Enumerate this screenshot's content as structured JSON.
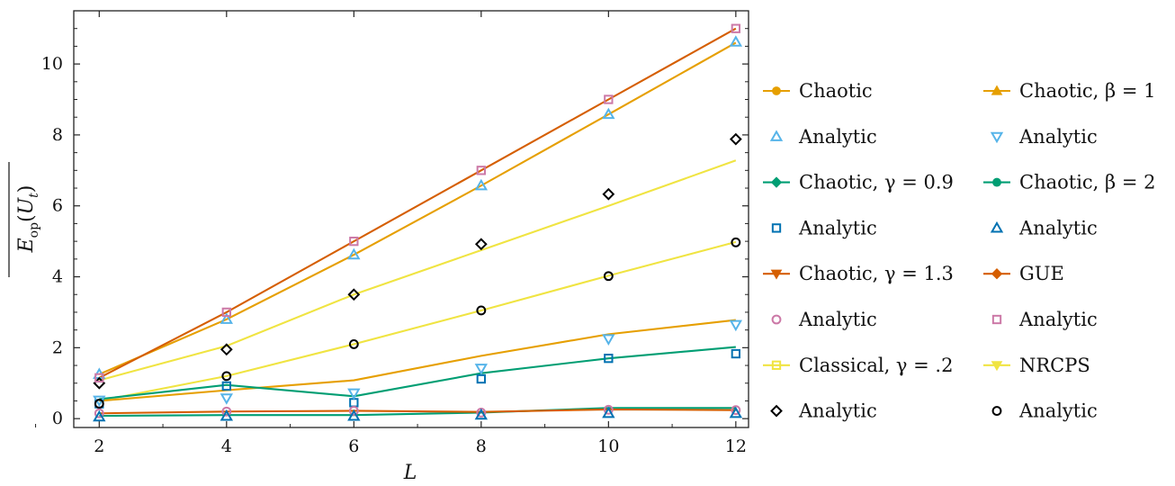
{
  "chart_data": {
    "type": "line",
    "xlabel": "L",
    "ylabel": "E_op(U_t)",
    "xlim": [
      1.6,
      12.2
    ],
    "ylim": [
      -0.25,
      11.5
    ],
    "x_ticks": [
      2,
      4,
      6,
      8,
      10,
      12
    ],
    "y_ticks": [
      0,
      2,
      4,
      6,
      8,
      10
    ],
    "x_tick_labels": [
      "2",
      "4",
      "6",
      "8",
      "10",
      "12"
    ],
    "y_tick_labels": [
      "0",
      "2",
      "4",
      "6",
      "8",
      "10"
    ],
    "grid": false,
    "legend_position": "right, two columns",
    "x": [
      2,
      4,
      6,
      8,
      10,
      12
    ],
    "series": [
      {
        "name": "Chaotic",
        "kind": "line",
        "marker": "circle-filled",
        "color": "#E69F00",
        "values": [
          1.25,
          2.8,
          4.62,
          6.57,
          8.58,
          10.6
        ]
      },
      {
        "name": "Analytic",
        "kind": "marker",
        "marker": "triangle-up-open",
        "color": "#56B4E9",
        "values": [
          1.25,
          2.8,
          4.62,
          6.57,
          8.58,
          10.62
        ]
      },
      {
        "name": "Chaotic, γ = 0.9",
        "kind": "line",
        "marker": "diamond-filled",
        "color": "#009E73",
        "values": [
          0.55,
          0.95,
          0.63,
          1.28,
          1.7,
          2.02
        ]
      },
      {
        "name": "Analytic",
        "kind": "marker",
        "marker": "square-open",
        "color": "#0072B2",
        "values": [
          0.42,
          0.92,
          0.45,
          1.12,
          1.7,
          1.83
        ]
      },
      {
        "name": "Chaotic, γ = 1.3",
        "kind": "line",
        "marker": "triangle-down-filled",
        "color": "#D55E00",
        "values": [
          0.15,
          0.2,
          0.22,
          0.19,
          0.26,
          0.24
        ]
      },
      {
        "name": "Analytic",
        "kind": "marker",
        "marker": "circle-open",
        "color": "#CC79A7",
        "values": [
          0.15,
          0.2,
          0.22,
          0.17,
          0.25,
          0.24
        ]
      },
      {
        "name": "Classical, γ = .2",
        "kind": "line",
        "marker": "square-open",
        "color": "#F0E442",
        "values": [
          0.5,
          1.2,
          2.1,
          3.05,
          4.03,
          4.98
        ]
      },
      {
        "name": "Analytic",
        "kind": "marker",
        "marker": "diamond-open",
        "color": "#000000",
        "values": [
          1.0,
          1.95,
          3.5,
          4.92,
          6.33,
          7.88
        ]
      },
      {
        "name": "Chaotic, β = 1",
        "kind": "line",
        "marker": "triangle-up-filled",
        "color": "#E69F00",
        "values": [
          0.5,
          0.8,
          1.08,
          1.77,
          2.38,
          2.78
        ]
      },
      {
        "name": "Analytic",
        "kind": "marker",
        "marker": "triangle-down-open",
        "color": "#56B4E9",
        "values": [
          0.52,
          0.58,
          0.72,
          1.42,
          2.25,
          2.65
        ]
      },
      {
        "name": "Chaotic, β = 2",
        "kind": "line",
        "marker": "circle-filled",
        "color": "#009E73",
        "values": [
          0.08,
          0.1,
          0.1,
          0.17,
          0.3,
          0.3
        ]
      },
      {
        "name": "Analytic",
        "kind": "marker",
        "marker": "triangle-up-open",
        "color": "#0072B2",
        "values": [
          0.05,
          0.07,
          0.07,
          0.1,
          0.15,
          0.15
        ]
      },
      {
        "name": "GUE",
        "kind": "line",
        "marker": "diamond-filled",
        "color": "#D55E00",
        "values": [
          1.15,
          3.0,
          5.0,
          7.0,
          9.0,
          11.0
        ]
      },
      {
        "name": "Analytic",
        "kind": "marker",
        "marker": "square-open",
        "color": "#CC79A7",
        "values": [
          1.15,
          3.0,
          5.0,
          7.0,
          9.0,
          11.0
        ]
      },
      {
        "name": "NRCPS",
        "kind": "line",
        "marker": "triangle-down-filled",
        "color": "#F0E442",
        "values": [
          1.08,
          2.05,
          3.5,
          4.75,
          6.0,
          7.28
        ]
      },
      {
        "name": "Analytic",
        "kind": "marker",
        "marker": "circle-open",
        "color": "#000000",
        "values": [
          0.42,
          1.2,
          2.1,
          3.05,
          4.02,
          4.97
        ]
      }
    ],
    "legend_columns": [
      [
        0,
        1,
        2,
        3,
        4,
        5,
        6,
        7
      ],
      [
        8,
        9,
        10,
        11,
        12,
        13,
        14,
        15
      ]
    ]
  }
}
